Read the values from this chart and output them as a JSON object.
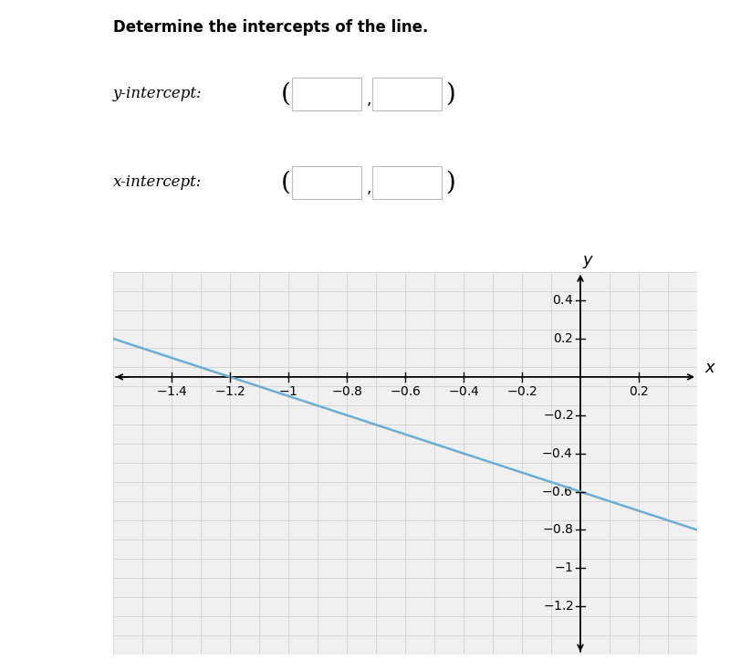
{
  "title": "Determine the intercepts of the line.",
  "slope": -0.5,
  "y_intercept_val": -0.6,
  "line_color": "#6aaed6",
  "line_width": 1.8,
  "xlim": [
    -1.6,
    0.4
  ],
  "ylim": [
    -1.45,
    0.55
  ],
  "x_ticks": [
    -1.4,
    -1.2,
    -1.0,
    -0.8,
    -0.6,
    -0.4,
    -0.2,
    0.2
  ],
  "x_tick_labels": [
    "-1.4",
    "-1.2",
    "-1",
    "-0.8",
    "-0.6",
    "-0.4",
    "-0.2",
    "0.2"
  ],
  "y_ticks": [
    -1.2,
    -1.0,
    -0.8,
    -0.6,
    -0.4,
    -0.2,
    0.2,
    0.4
  ],
  "y_tick_labels": [
    "-1.2",
    "-1",
    "-0.8",
    "-0.6",
    "-0.4",
    "-0.2",
    "0.2",
    "0.4"
  ],
  "grid_color": "#cccccc",
  "background_color": "#ffffff",
  "plot_bg_color": "#f0f0f0",
  "axis_color": "#000000",
  "tick_fontsize": 10,
  "label_fontsize": 13,
  "title_fontsize": 12,
  "intercept_fontsize": 12,
  "box_edge_color": "#bbbbbb",
  "minor_grid_step": 0.1
}
